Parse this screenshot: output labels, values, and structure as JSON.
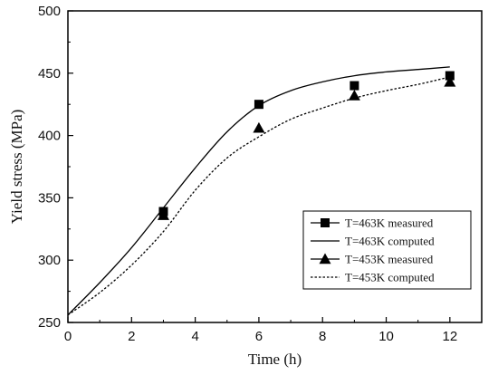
{
  "chart_data": {
    "type": "line",
    "xlabel": "Time (h)",
    "ylabel": "Yield stress (MPa)",
    "xlim": [
      0,
      13
    ],
    "ylim": [
      250,
      500
    ],
    "xticks": [
      0,
      2,
      4,
      6,
      8,
      10,
      12
    ],
    "yticks": [
      250,
      300,
      350,
      400,
      450,
      500
    ],
    "grid": false,
    "legend_position": "bottom-right",
    "series": [
      {
        "name": "T=463K measured",
        "kind": "scatter",
        "marker": "square",
        "color": "#000000",
        "x": [
          3,
          6,
          9,
          12
        ],
        "y": [
          339,
          425,
          440,
          448
        ]
      },
      {
        "name": "T=463K computed",
        "kind": "line",
        "style": "solid",
        "color": "#000000",
        "x": [
          0,
          1,
          2,
          3,
          4,
          5,
          6,
          7,
          8,
          9,
          10,
          11,
          12
        ],
        "y": [
          256,
          282,
          310,
          342,
          374,
          403,
          424,
          436,
          443,
          448,
          451,
          453,
          455
        ]
      },
      {
        "name": "T=453K measured",
        "kind": "scatter",
        "marker": "triangle",
        "color": "#000000",
        "x": [
          3,
          6,
          9,
          12
        ],
        "y": [
          336,
          406,
          432,
          443
        ]
      },
      {
        "name": "T=453K computed",
        "kind": "line",
        "style": "dotted",
        "color": "#000000",
        "x": [
          0,
          1,
          2,
          3,
          4,
          5,
          6,
          7,
          8,
          9,
          10,
          11,
          12
        ],
        "y": [
          256,
          274,
          296,
          323,
          356,
          382,
          399,
          413,
          422,
          430,
          436,
          441,
          447
        ]
      }
    ]
  }
}
